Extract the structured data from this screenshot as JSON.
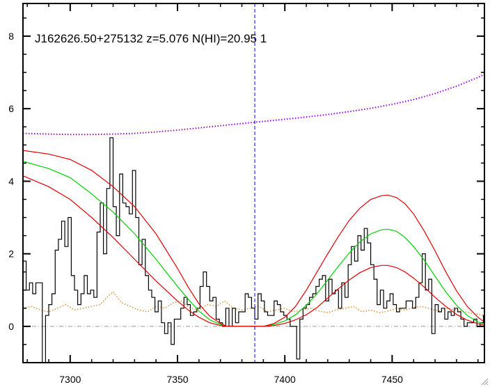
{
  "chart_data": {
    "type": "line",
    "title": "J162626.50+275132 z=5.076 N(HI)=20.95 1",
    "xlabel": "",
    "ylabel": "",
    "xlim": [
      7278,
      7493
    ],
    "ylim": [
      -1.0,
      8.9
    ],
    "x_ticks": [
      7300,
      7350,
      7400,
      7450
    ],
    "y_ticks": [
      0,
      2,
      4,
      6,
      8
    ],
    "x_minor_step": 10,
    "y_minor_step": 0.5,
    "grid": false,
    "legend": "none",
    "vertical_marker_x": 7386,
    "zero_level": 0,
    "colors": {
      "flux": "#000000",
      "model": "#00d000",
      "model_bounds": "#e00000",
      "continuum": "#9a00ff",
      "error": "#e08a30",
      "marker": "#0000ff",
      "zero_line": "#999999"
    },
    "series": [
      {
        "style": "step",
        "x": [
          7278,
          7279.5,
          7281,
          7282.5,
          7284,
          7285.5,
          7287,
          7288.5,
          7290,
          7291.5,
          7293,
          7294.5,
          7296,
          7297.5,
          7299,
          7300.5,
          7302,
          7303.5,
          7305,
          7306.5,
          7308,
          7309.5,
          7311,
          7312.5,
          7314,
          7315.5,
          7317,
          7318.5,
          7320,
          7321.5,
          7323,
          7324.5,
          7326,
          7327.5,
          7329,
          7330.5,
          7332,
          7333.5,
          7335,
          7336.5,
          7338,
          7339.5,
          7341,
          7342.5,
          7344,
          7345.5,
          7347,
          7348.5,
          7350,
          7351.5,
          7353,
          7354.5,
          7356,
          7357.5,
          7359,
          7360.5,
          7362,
          7363.5,
          7365,
          7366.5,
          7368,
          7369.5,
          7371,
          7372.5,
          7374,
          7375.5,
          7377,
          7378.5,
          7380,
          7381.5,
          7383,
          7384.5,
          7386,
          7387.5,
          7389,
          7390.5,
          7392,
          7393.5,
          7395,
          7396.5,
          7398,
          7399.5,
          7401,
          7402.5,
          7404,
          7405.5,
          7407,
          7408.5,
          7410,
          7411.5,
          7413,
          7414.5,
          7416,
          7417.5,
          7419,
          7420.5,
          7422,
          7423.5,
          7425,
          7426.5,
          7428,
          7429.5,
          7431,
          7432.5,
          7434,
          7435.5,
          7437,
          7438.5,
          7440,
          7441.5,
          7443,
          7444.5,
          7446,
          7447.5,
          7449,
          7450.5,
          7452,
          7453.5,
          7455,
          7456.5,
          7458,
          7459.5,
          7461,
          7462.5,
          7464,
          7465.5,
          7467,
          7468.5,
          7470,
          7471.5,
          7473,
          7474.5,
          7476,
          7477.5,
          7479,
          7480.5,
          7482,
          7483.5,
          7485,
          7486.5,
          7488,
          7489.5,
          7491,
          7492.5
        ],
        "values": [
          1.8,
          1.0,
          1.2,
          0.9,
          1.2,
          1.2,
          -1.0,
          0.3,
          0.6,
          0.9,
          2.1,
          2.4,
          2.9,
          2.2,
          3.0,
          1.4,
          1.0,
          0.6,
          0.9,
          1.4,
          0.9,
          1.0,
          0.8,
          2.6,
          3.4,
          2.0,
          3.8,
          5.2,
          3.3,
          2.5,
          4.2,
          3.4,
          3.3,
          3.1,
          4.3,
          3.0,
          1.7,
          2.4,
          1.4,
          1.0,
          0.8,
          0.4,
          0.7,
          0.1,
          -0.2,
          0.1,
          -0.5,
          0.2,
          0.2,
          0.5,
          0.8,
          0.6,
          0.3,
          0.4,
          0.5,
          1.1,
          1.5,
          1.1,
          0.7,
          0.8,
          0.2,
          0.1,
          0.0,
          0.5,
          0.0,
          0.5,
          0.1,
          0.4,
          0.4,
          0.9,
          0.8,
          0.5,
          0.2,
          0.9,
          0.7,
          0.4,
          0.3,
          0.3,
          0.7,
          0.6,
          0.4,
          0.3,
          0.2,
          0.0,
          0.0,
          -0.9,
          0.2,
          0.5,
          0.6,
          0.8,
          0.9,
          1.1,
          1.3,
          1.4,
          0.7,
          1.3,
          0.9,
          1.0,
          0.5,
          1.2,
          0.8,
          1.7,
          2.2,
          1.8,
          2.5,
          2.1,
          2.7,
          2.3,
          1.7,
          1.3,
          0.6,
          1.0,
          0.5,
          0.7,
          0.9,
          0.6,
          0.4,
          0.5,
          0.5,
          0.7,
          0.7,
          0.5,
          0.8,
          1.2,
          2.0,
          1.0,
          1.3,
          -0.2,
          0.6,
          0.4,
          0.5,
          0.2,
          0.4,
          0.3,
          0.5,
          0.4,
          0.2,
          0.0,
          0.1,
          0.1,
          0.2,
          0.0,
          0.1,
          0.3
        ]
      },
      {
        "style": "model",
        "x": [
          7278,
          7290,
          7300,
          7310,
          7320,
          7330,
          7340,
          7350,
          7355,
          7360,
          7365,
          7370,
          7373,
          7390,
          7395,
          7400,
          7405,
          7410,
          7415,
          7420,
          7425,
          7430,
          7435,
          7440,
          7445,
          7448,
          7452,
          7456,
          7460,
          7465,
          7470,
          7475,
          7480,
          7485,
          7490,
          7493
        ],
        "values": [
          4.55,
          4.35,
          4.1,
          3.65,
          3.15,
          2.55,
          1.85,
          1.1,
          0.75,
          0.42,
          0.18,
          0.05,
          0.0,
          0.0,
          0.05,
          0.15,
          0.32,
          0.58,
          0.9,
          1.28,
          1.66,
          2.02,
          2.33,
          2.55,
          2.66,
          2.68,
          2.62,
          2.45,
          2.2,
          1.82,
          1.38,
          0.95,
          0.58,
          0.3,
          0.12,
          0.06
        ]
      },
      {
        "style": "bound",
        "x": [
          7278,
          7290,
          7300,
          7310,
          7320,
          7330,
          7340,
          7350,
          7355,
          7360,
          7365,
          7370,
          7373,
          7390,
          7395,
          7400,
          7405,
          7410,
          7415,
          7420,
          7425,
          7430,
          7435,
          7440,
          7445,
          7448,
          7452,
          7456,
          7460,
          7465,
          7470,
          7475,
          7480,
          7485,
          7490,
          7493
        ],
        "values": [
          4.85,
          4.75,
          4.6,
          4.3,
          3.85,
          3.3,
          2.55,
          1.6,
          1.08,
          0.62,
          0.28,
          0.08,
          0.0,
          0.0,
          0.08,
          0.25,
          0.55,
          1.0,
          1.5,
          2.0,
          2.48,
          2.92,
          3.26,
          3.5,
          3.6,
          3.62,
          3.55,
          3.38,
          3.1,
          2.62,
          2.08,
          1.5,
          0.98,
          0.55,
          0.25,
          0.12
        ]
      },
      {
        "style": "bound",
        "x": [
          7278,
          7290,
          7300,
          7310,
          7320,
          7330,
          7340,
          7350,
          7355,
          7360,
          7365,
          7370,
          7373,
          7390,
          7395,
          7400,
          7405,
          7410,
          7415,
          7420,
          7425,
          7430,
          7435,
          7440,
          7445,
          7448,
          7452,
          7456,
          7460,
          7465,
          7470,
          7475,
          7480,
          7485,
          7490,
          7493
        ],
        "values": [
          4.15,
          3.85,
          3.5,
          3.0,
          2.45,
          1.85,
          1.25,
          0.7,
          0.45,
          0.25,
          0.1,
          0.02,
          0.0,
          0.0,
          0.02,
          0.08,
          0.18,
          0.32,
          0.52,
          0.78,
          1.04,
          1.28,
          1.48,
          1.62,
          1.68,
          1.68,
          1.62,
          1.5,
          1.33,
          1.08,
          0.8,
          0.55,
          0.33,
          0.17,
          0.07,
          0.03
        ]
      },
      {
        "style": "continuum",
        "x": [
          7278,
          7290,
          7300,
          7310,
          7320,
          7330,
          7340,
          7350,
          7360,
          7370,
          7380,
          7390,
          7400,
          7410,
          7420,
          7430,
          7440,
          7450,
          7460,
          7470,
          7480,
          7490,
          7493
        ],
        "values": [
          5.32,
          5.3,
          5.29,
          5.29,
          5.3,
          5.32,
          5.36,
          5.41,
          5.47,
          5.53,
          5.59,
          5.65,
          5.71,
          5.77,
          5.84,
          5.92,
          6.01,
          6.12,
          6.25,
          6.42,
          6.62,
          6.86,
          6.95
        ]
      },
      {
        "style": "error",
        "x": [
          7278,
          7282,
          7286,
          7290,
          7294,
          7298,
          7302,
          7306,
          7310,
          7314,
          7318,
          7320,
          7324,
          7328,
          7332,
          7336,
          7340,
          7344,
          7348,
          7352,
          7356,
          7360,
          7364,
          7368,
          7372,
          7376,
          7380,
          7384,
          7388,
          7392,
          7396,
          7400,
          7404,
          7408,
          7412,
          7416,
          7420,
          7424,
          7428,
          7432,
          7436,
          7440,
          7444,
          7448,
          7452,
          7456,
          7460,
          7464,
          7468,
          7472,
          7476,
          7480,
          7484,
          7488,
          7493
        ],
        "values": [
          0.5,
          0.55,
          0.45,
          0.4,
          0.5,
          0.6,
          0.45,
          0.5,
          0.55,
          0.6,
          0.85,
          0.95,
          0.65,
          0.55,
          0.45,
          0.4,
          0.55,
          0.5,
          0.65,
          0.7,
          0.5,
          0.45,
          0.6,
          0.55,
          0.7,
          0.5,
          0.45,
          0.5,
          0.55,
          0.4,
          0.45,
          0.5,
          0.4,
          0.45,
          0.5,
          0.42,
          0.38,
          0.45,
          0.5,
          0.55,
          0.4,
          0.45,
          0.38,
          0.42,
          0.5,
          0.45,
          0.52,
          0.55,
          0.48,
          0.42,
          0.5,
          0.45,
          0.4,
          0.35,
          0.3
        ]
      }
    ]
  },
  "ui": {
    "resize_grip_icon": "resize-grip-icon"
  }
}
